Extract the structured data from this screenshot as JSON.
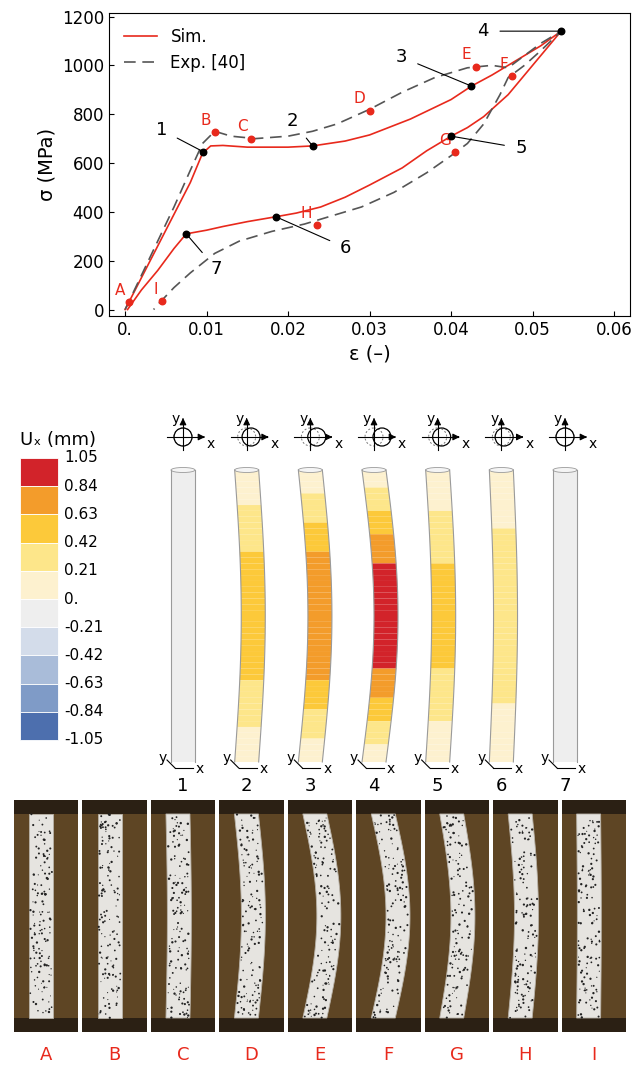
{
  "chart_data": {
    "type": "line",
    "xlabel": "ε (–)",
    "ylabel": "σ (MPa)",
    "xlim": [
      -0.002,
      0.062
    ],
    "ylim": [
      -25,
      1215
    ],
    "xticks": [
      {
        "value": 0,
        "label": "0."
      },
      0.01,
      0.02,
      0.03,
      0.04,
      0.05,
      0.06
    ],
    "yticks": [
      0,
      200,
      400,
      600,
      800,
      1000,
      1200
    ],
    "legend": "upper left",
    "series": [
      {
        "name": "Sim.",
        "color": "#e8291c",
        "line_style": "solid",
        "x": [
          0,
          0.002,
          0.004,
          0.006,
          0.008,
          0.0095,
          0.0105,
          0.012,
          0.015,
          0.02,
          0.023,
          0.027,
          0.03,
          0.035,
          0.04,
          0.0425,
          0.045,
          0.048,
          0.051,
          0.0535,
          0.05,
          0.047,
          0.044,
          0.042,
          0.04,
          0.037,
          0.034,
          0.03,
          0.027,
          0.024,
          0.021,
          0.0185,
          0.015,
          0.012,
          0.01,
          0.0075,
          0.006,
          0.004,
          0.002,
          0.0003
        ],
        "values": [
          0,
          130,
          260,
          390,
          520,
          640,
          670,
          672,
          665,
          665,
          670,
          690,
          715,
          780,
          860,
          915,
          960,
          1020,
          1080,
          1140,
          1000,
          880,
          790,
          745,
          710,
          650,
          580,
          510,
          460,
          420,
          395,
          380,
          360,
          340,
          325,
          310,
          250,
          160,
          80,
          0
        ],
        "points": {
          "color": "#000000",
          "labels": [
            "1",
            "2",
            "3",
            "4",
            "5",
            "6",
            "7"
          ],
          "x": [
            0.0096,
            0.023,
            0.0425,
            0.0535,
            0.04,
            0.0185,
            0.0075
          ],
          "values": [
            646,
            670,
            915,
            1140,
            710,
            380,
            310
          ]
        }
      },
      {
        "name": "Exp. [40]",
        "color": "#555555",
        "line_style": "dashed",
        "x": [
          0,
          0.003,
          0.006,
          0.008,
          0.0095,
          0.011,
          0.013,
          0.016,
          0.02,
          0.023,
          0.026,
          0.03,
          0.034,
          0.038,
          0.042,
          0.045,
          0.047,
          0.049,
          0.051,
          0.0535,
          0.051,
          0.049,
          0.047,
          0.046,
          0.044,
          0.042,
          0.04,
          0.037,
          0.033,
          0.029,
          0.025,
          0.022,
          0.018,
          0.014,
          0.011,
          0.008,
          0.006,
          0.004,
          0.0035
        ],
        "values": [
          0,
          210,
          420,
          570,
          680,
          730,
          710,
          700,
          710,
          730,
          760,
          820,
          890,
          950,
          990,
          1000,
          990,
          1040,
          1090,
          1140,
          1060,
          1000,
          950,
          880,
          760,
          680,
          630,
          560,
          480,
          420,
          380,
          350,
          320,
          280,
          230,
          150,
          90,
          20,
          0
        ],
        "points": {
          "color": "#e8291c",
          "labels": [
            "A",
            "B",
            "C",
            "D",
            "E",
            "F",
            "G",
            "H",
            "I"
          ],
          "x": [
            0.0005,
            0.011,
            0.0155,
            0.03,
            0.043,
            0.0475,
            0.0405,
            0.0235,
            0.0045
          ],
          "values": [
            30,
            725,
            700,
            815,
            995,
            955,
            645,
            345,
            35
          ]
        }
      }
    ]
  },
  "displacement_field": {
    "title": "Uₓ (mm)",
    "colorbar_ticks": [
      1.05,
      0.84,
      0.63,
      0.42,
      0.21,
      {
        "value": 0,
        "label": "0."
      },
      -0.21,
      -0.42,
      -0.63,
      -0.84,
      -1.05
    ],
    "colors": [
      "#d2232a",
      "#f39c2b",
      "#fcc93a",
      "#fde68a",
      "#fdf1cf",
      "#eeeeee",
      "#d3dcea",
      "#a9bcd9",
      "#7f9bc7",
      "#4d6fae"
    ],
    "axis_labels": [
      "x",
      "y"
    ],
    "states": [
      {
        "label": "1",
        "peak": 0
      },
      {
        "label": "2",
        "peak": 0.55
      },
      {
        "label": "3",
        "peak": 0.8
      },
      {
        "label": "4",
        "peak": 1.0
      },
      {
        "label": "5",
        "peak": 0.5
      },
      {
        "label": "6",
        "peak": 0.35
      },
      {
        "label": "7",
        "peak": 0
      }
    ]
  },
  "photos": {
    "color": "#e8291c",
    "frames": [
      {
        "label": "A",
        "deflection": 0
      },
      {
        "label": "B",
        "deflection": 0
      },
      {
        "label": "C",
        "deflection": 0.1
      },
      {
        "label": "D",
        "deflection": 0.5
      },
      {
        "label": "E",
        "deflection": 1.0
      },
      {
        "label": "F",
        "deflection": 1.05
      },
      {
        "label": "G",
        "deflection": 0.8
      },
      {
        "label": "H",
        "deflection": 0.45
      },
      {
        "label": "I",
        "deflection": 0.05
      }
    ]
  }
}
